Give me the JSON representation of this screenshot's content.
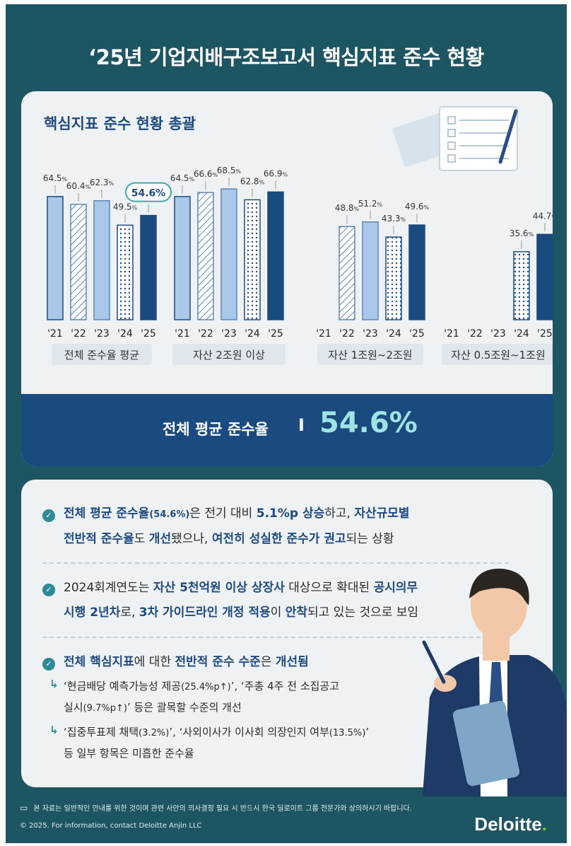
{
  "title": "‘25년 기업지배구조보고서 핵심지표 준수 현황",
  "card1": {
    "heading": "핵심지표 준수 현황 총괄",
    "band_label": "전체 평균 준수율",
    "band_sep": "I",
    "band_value": "54.6%"
  },
  "chart_data": {
    "type": "bar",
    "unit": "%",
    "categories": [
      "'21",
      "'22",
      "'23",
      "'24",
      "'25"
    ],
    "groups": [
      {
        "name": "전체 준수율 평균",
        "values": [
          64.5,
          60.4,
          62.3,
          49.5,
          54.6
        ],
        "labels": [
          "64.5",
          "60.4",
          "62.3",
          "49.5",
          "54.6%"
        ]
      },
      {
        "name": "자산 2조원 이상",
        "values": [
          64.5,
          66.6,
          68.5,
          62.8,
          66.9
        ],
        "labels": [
          "64.5",
          "66.6",
          "68.5",
          "62.8",
          "66.9"
        ]
      },
      {
        "name": "자산 1조원~2조원",
        "values": [
          null,
          48.8,
          51.2,
          43.3,
          49.6
        ],
        "labels": [
          "",
          "48.8",
          "51.2",
          "43.3",
          "49.6"
        ]
      },
      {
        "name": "자산 0.5조원~1조원",
        "values": [
          null,
          null,
          null,
          35.6,
          44.7
        ],
        "labels": [
          "",
          "",
          "",
          "35.6",
          "44.7"
        ]
      }
    ],
    "highlight": {
      "group": 0,
      "index": 4
    },
    "colors": {
      "2021": "#1f4a7f",
      "2022": "#8fb2d9",
      "2023": "#a9c8ea",
      "2024": "#ffffff",
      "2025": "#1b4a7e"
    }
  },
  "bullets": {
    "b1": {
      "p1": "전체 평균 준수율",
      "p2": "(54.6%)",
      "p3": "은 전기 대비 ",
      "p4": "5.1%p 상승",
      "p5": "하고, ",
      "p6": "자산규모별",
      "p7": "전반적 준수율",
      "p8": "도 ",
      "p9": "개선",
      "p10": "됐으나, ",
      "p11": "여전히 성실한 준수가 권고",
      "p12": "되는 상황"
    },
    "b2": {
      "p1": "2024회계연도는 ",
      "p2": "자산 5천억원 이상 상장사",
      "p3": " 대상으로 확대된 ",
      "p4": "공시의무",
      "p5": "시행 2년차",
      "p6": "로, ",
      "p7": "3차 가이드라인 개정 적용",
      "p8": "이 ",
      "p9": "안착",
      "p10": "되고 있는 것으로 보임"
    },
    "b3": {
      "p1": "전체 핵심지표",
      "p2": "에 대한 ",
      "p3": "전반적 준수 수준",
      "p4": "은 ",
      "p5": "개선됨",
      "s1a": "‘현금배당 예측가능성 제공",
      "s1b": "(25.4%p↑)",
      "s1c": "’, ‘주총 4주 전 소집공고",
      "s1d": "실시",
      "s1e": "(9.7%p↑)",
      "s1f": "’ 등은 괄목할 수준의 개선",
      "s2a": "‘집중투표제 채택",
      "s2b": "(3.2%)",
      "s2c": "’, ‘사외이사가 이사회 의장인지 여부",
      "s2d": "(13.5%)",
      "s2e": "’",
      "s2f": "등 일부 항목은 미흡한 준수율"
    }
  },
  "footer": {
    "disclaimer": "본 자료는 일반적인 안내를 위한 것이며 관련 사안의 의사결정 필요 시 반드시 한국 딜로이트 그룹 전문가와 상의하시기 바랍니다.",
    "copyright": "© 2025. For information, contact Deloitte Anjin LLC",
    "logo": "Deloitte",
    "logo_dot": "."
  }
}
